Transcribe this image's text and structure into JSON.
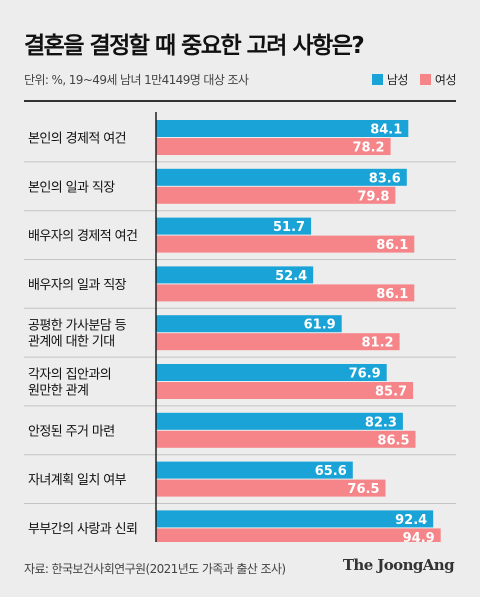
{
  "title": "결혼을 결정할 때 중요한 고려 사항은?",
  "subtitle": "단위: %, 19~49세 남녀 1만4149명 대상 조사",
  "source": "자료: 한국보건사회연구원(2021년도 가족과 출산 조사)",
  "brand": "The JoongAng",
  "colors": {
    "male": "#1aa3d6",
    "female": "#f58589",
    "background": "#ededed"
  },
  "chart_data": {
    "type": "bar",
    "orientation": "horizontal",
    "categories": [
      [
        "본인의 경제적 여건"
      ],
      [
        "본인의 일과 직장"
      ],
      [
        "배우자의 경제적 여건"
      ],
      [
        "배우자의 일과 직장"
      ],
      [
        "공평한 가사분담 등",
        "관계에 대한 기대"
      ],
      [
        "각자의 집안과의",
        "원만한 관계"
      ],
      [
        "안정된 주거 마련"
      ],
      [
        "자녀계획 일치 여부"
      ],
      [
        "부부간의 사랑과 신뢰"
      ]
    ],
    "series": [
      {
        "name": "남성",
        "values": [
          84.1,
          83.6,
          51.7,
          52.4,
          61.9,
          76.9,
          82.3,
          65.6,
          92.4
        ]
      },
      {
        "name": "여성",
        "values": [
          78.2,
          79.8,
          86.1,
          86.1,
          81.2,
          85.7,
          86.5,
          76.5,
          94.9
        ]
      }
    ],
    "xlim": [
      0,
      100
    ],
    "legend_position": "top-right",
    "data_labels": "inside-end"
  }
}
